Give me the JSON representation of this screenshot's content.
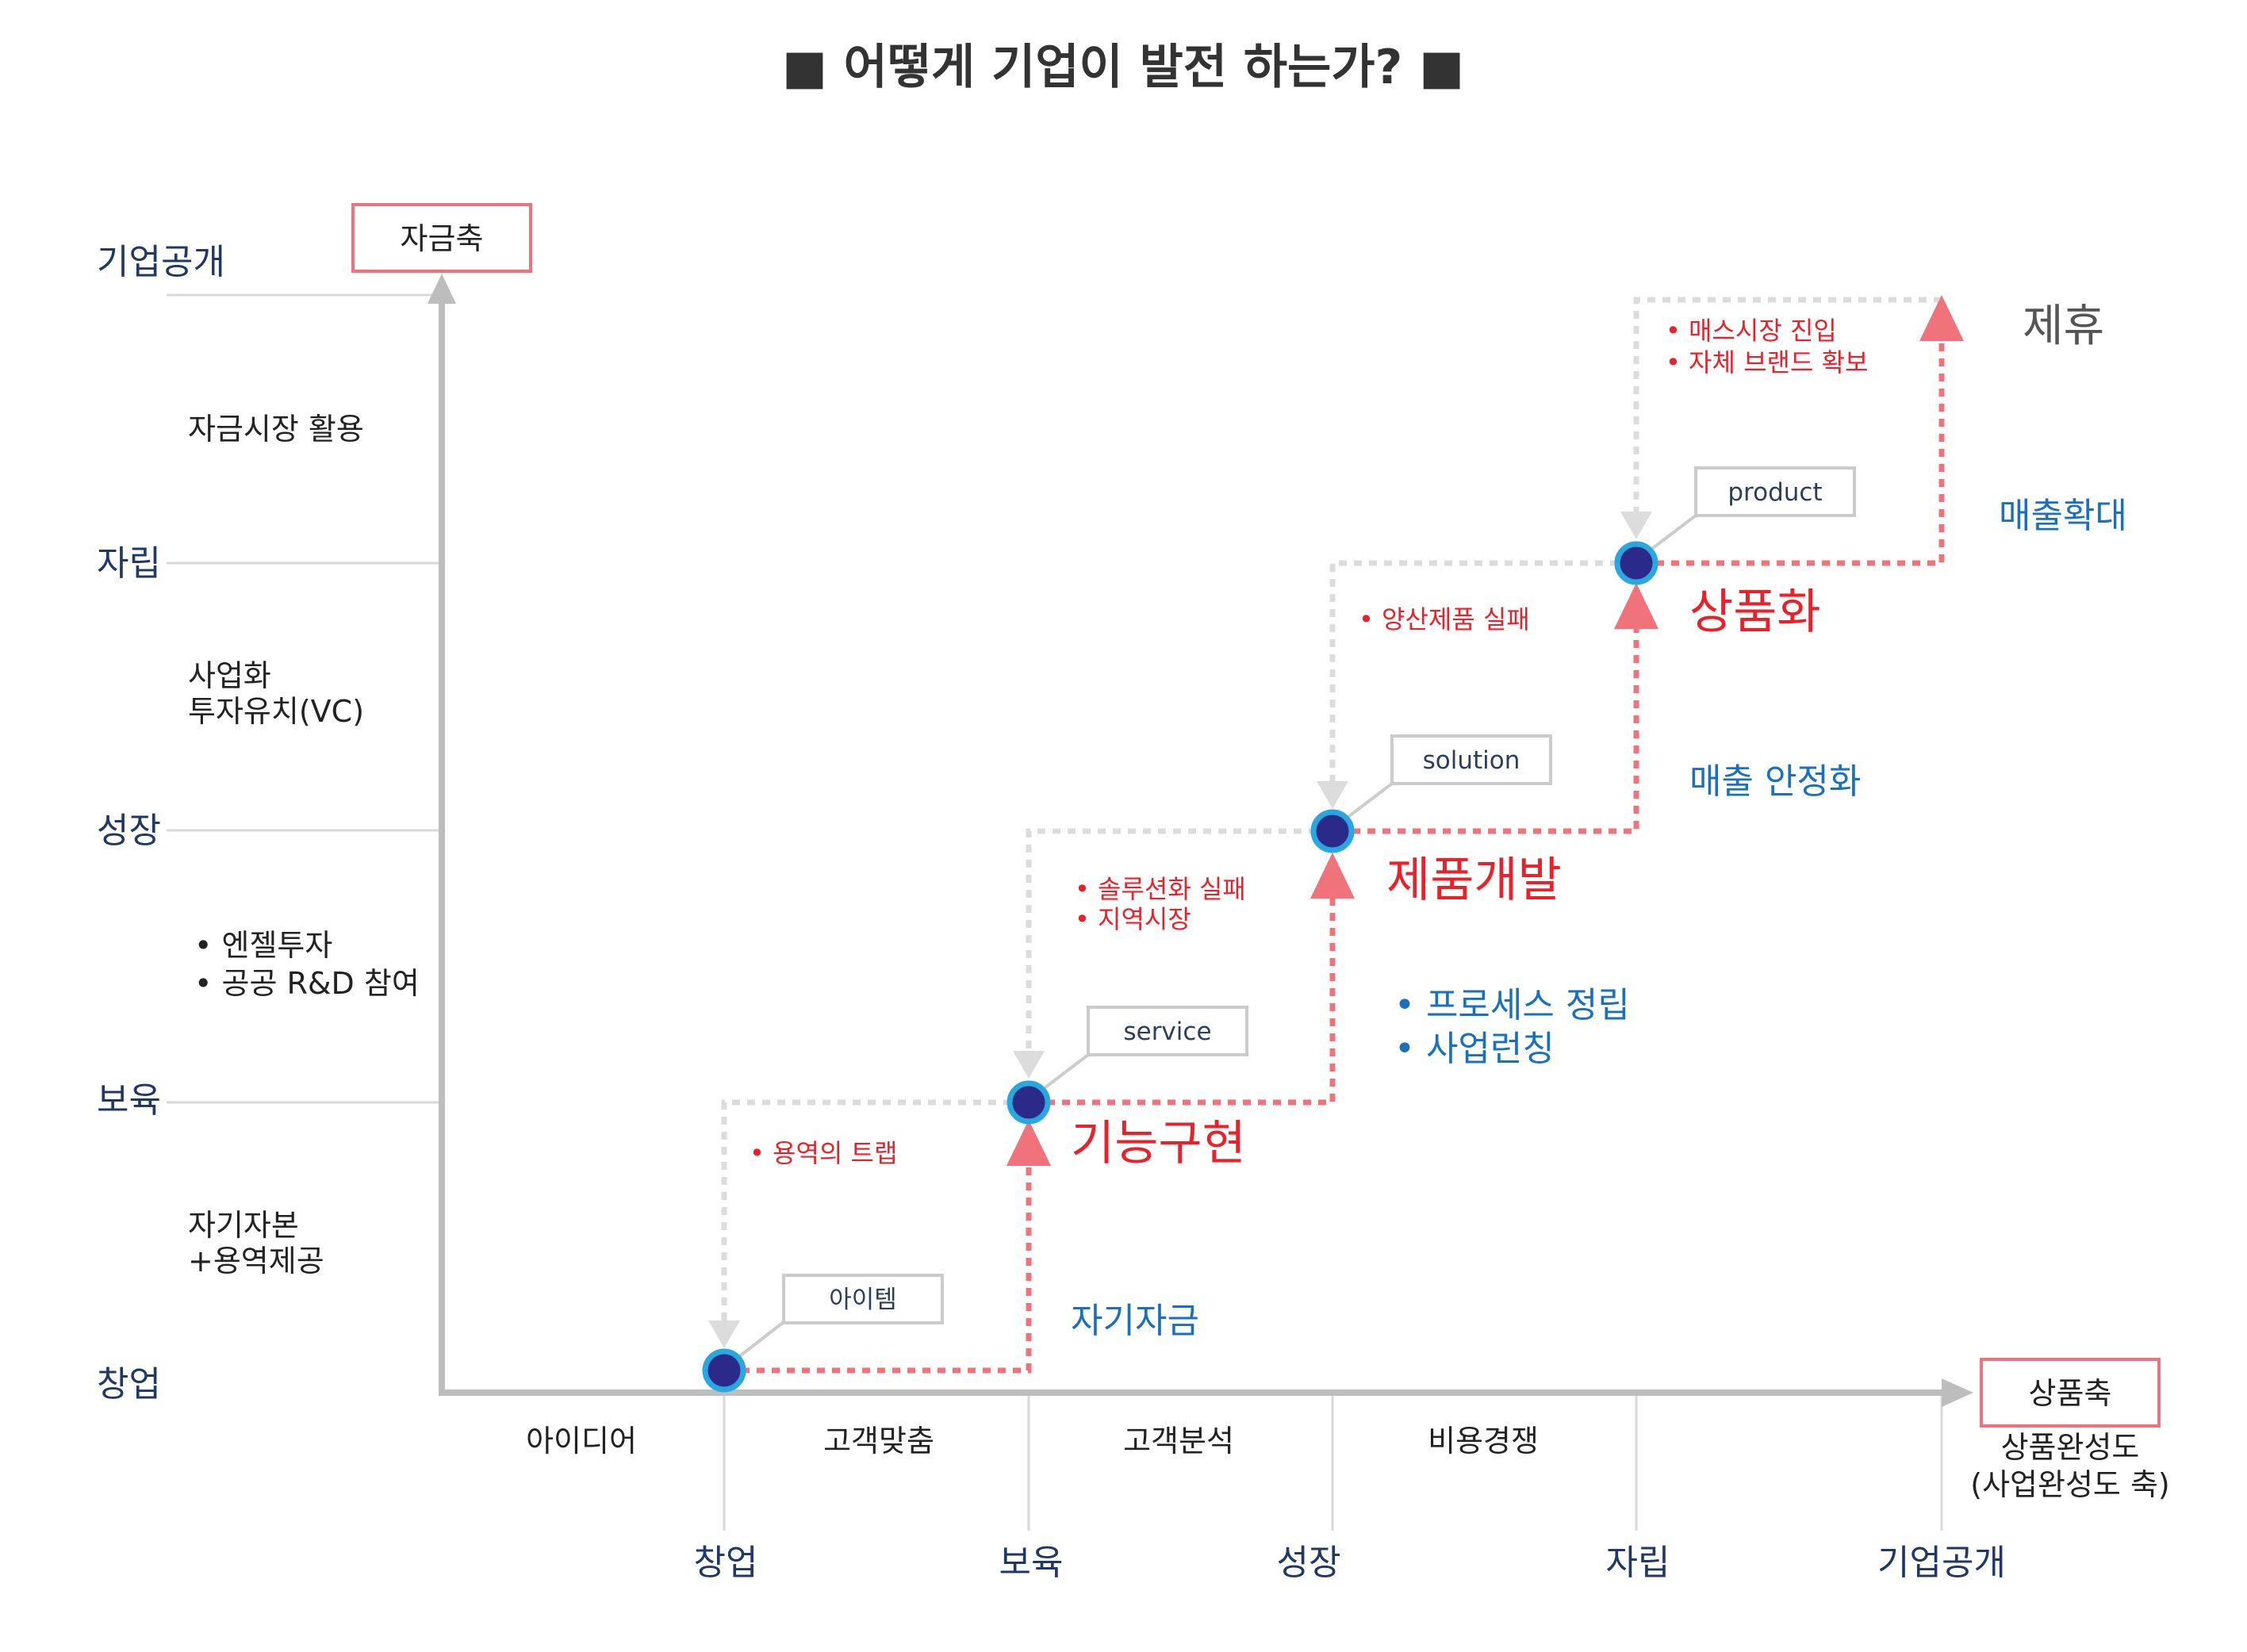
{
  "title": "■ 어떻게 기업이 발전 하는가? ■",
  "y_axis": {
    "box_label": "자금축",
    "levels": [
      "창업",
      "보육",
      "성장",
      "자립",
      "기업공개"
    ],
    "band_notes": {
      "b0": [
        "자기자본",
        "+용역제공"
      ],
      "b1": [
        "• 엔젤투자",
        "• 공공 R&D 참여"
      ],
      "b2": [
        "사업화",
        "투자유치(VC)"
      ],
      "b3": [
        "자금시장 활용"
      ]
    }
  },
  "x_axis": {
    "box_label": "상품축",
    "sub_label": [
      "상품완성도",
      "(사업완성도 축)"
    ],
    "levels": [
      "창업",
      "보육",
      "성장",
      "자립",
      "기업공개"
    ],
    "band_labels": [
      "아이디어",
      "고객맞춤",
      "고객분석",
      "비용경쟁"
    ]
  },
  "nodes": [
    {
      "tag": "아이템"
    },
    {
      "tag": "service",
      "stage": "기능구현"
    },
    {
      "tag": "solution",
      "stage": "제품개발"
    },
    {
      "tag": "product",
      "stage": "상품화"
    }
  ],
  "growth_labels": {
    "g0": [
      "자기자금"
    ],
    "g1": [
      "• 프로세스 정립",
      "• 사업런칭"
    ],
    "g2": [
      "매출 안정화"
    ],
    "g3": [
      "매출확대"
    ]
  },
  "failure_notes": {
    "f0": [
      "• 용역의 트랩"
    ],
    "f1": [
      "• 솔루션화 실패",
      "• 지역시장"
    ],
    "f2": [
      "• 양산제품 실패"
    ],
    "f3": [
      "• 매스시장 진입",
      "• 자체 브랜드 확보"
    ]
  },
  "final_label": "제휴",
  "colors": {
    "axis": "#bdbdbd",
    "grid": "#d9d9d9",
    "growth_path": "#f0727a",
    "failure_path": "#dcdcdc",
    "node_fill": "#2b2a8a",
    "node_ring": "#29a8e0",
    "box_border": "#f0727a",
    "title": "#333333"
  }
}
